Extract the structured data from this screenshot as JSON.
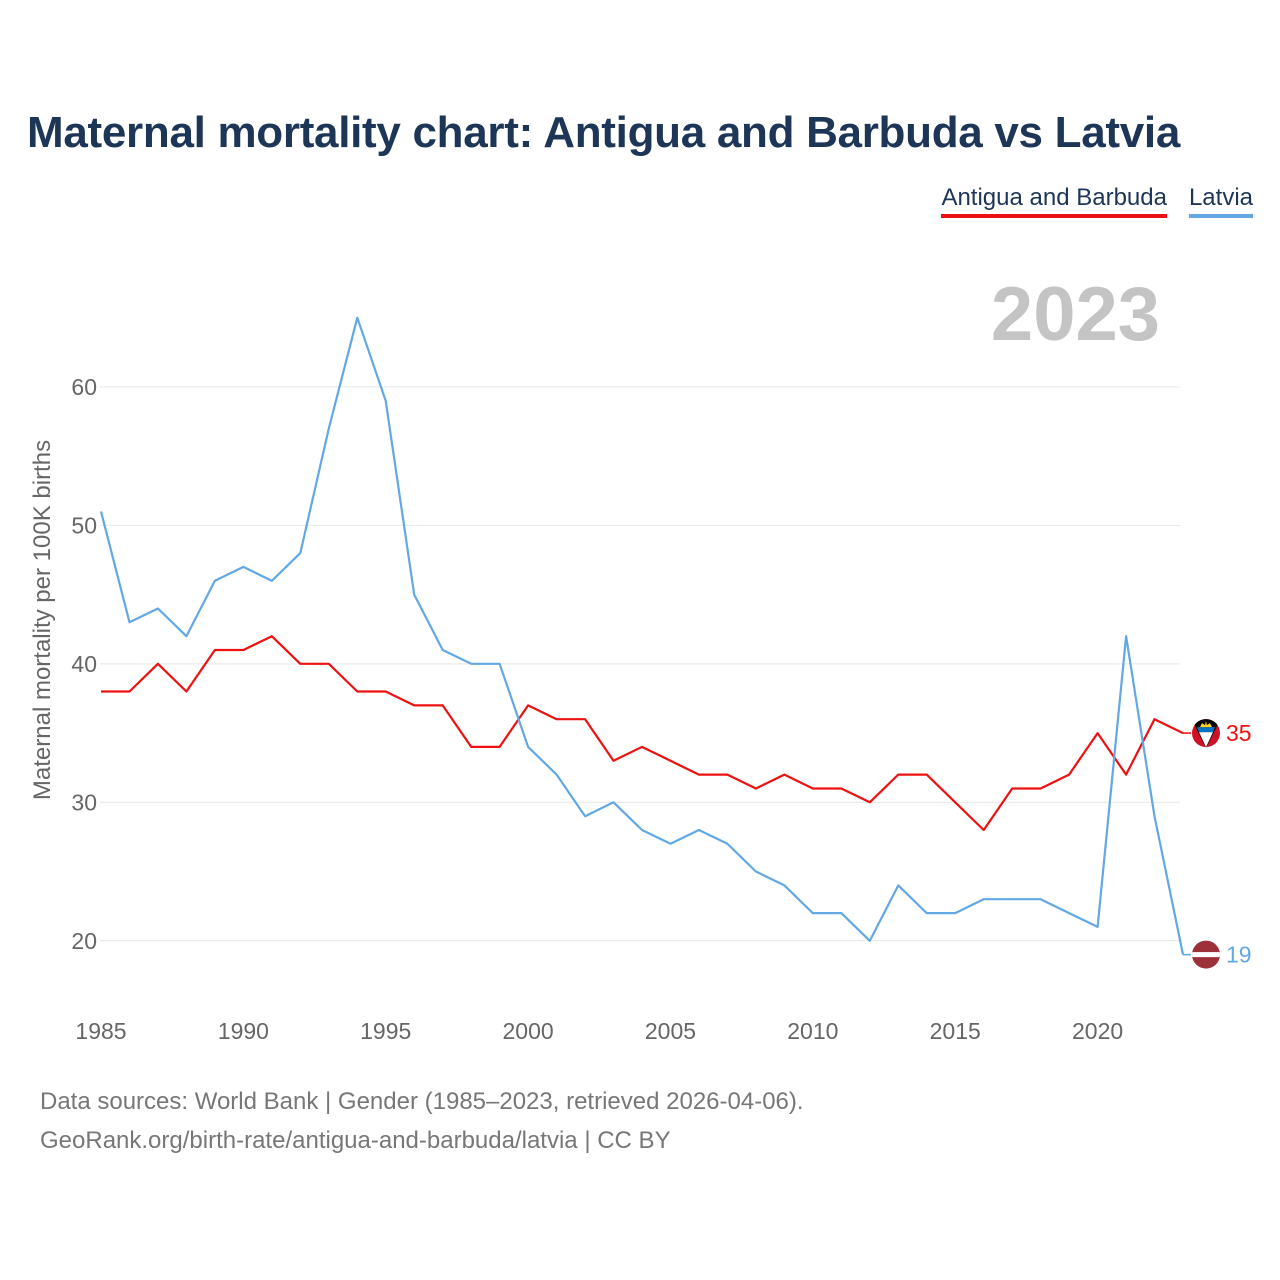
{
  "title": "Maternal mortality chart: Antigua and Barbuda vs Latvia",
  "legend": [
    {
      "name": "Antigua and Barbuda",
      "color": "#ee1111"
    },
    {
      "name": "Latvia",
      "color": "#62a8e5"
    }
  ],
  "year_label": "2023",
  "chart_data": {
    "type": "line",
    "title": "Maternal mortality chart: Antigua and Barbuda vs Latvia",
    "xlabel": "",
    "ylabel": "Maternal mortality per 100K births",
    "xlim": [
      1985,
      2023
    ],
    "ylim": [
      15,
      67
    ],
    "x_ticks": [
      1985,
      1990,
      1995,
      2000,
      2005,
      2010,
      2015,
      2020
    ],
    "y_ticks": [
      20,
      30,
      40,
      50,
      60
    ],
    "grid": true,
    "x": [
      1985,
      1986,
      1987,
      1988,
      1989,
      1990,
      1991,
      1992,
      1993,
      1994,
      1995,
      1996,
      1997,
      1998,
      1999,
      2000,
      2001,
      2002,
      2003,
      2004,
      2005,
      2006,
      2007,
      2008,
      2009,
      2010,
      2011,
      2012,
      2013,
      2014,
      2015,
      2016,
      2017,
      2018,
      2019,
      2020,
      2021,
      2022,
      2023
    ],
    "series": [
      {
        "name": "Antigua and Barbuda",
        "color": "#ee1111",
        "end_label": "35",
        "values": [
          38,
          38,
          40,
          38,
          41,
          41,
          42,
          40,
          40,
          38,
          38,
          37,
          37,
          34,
          34,
          37,
          36,
          36,
          33,
          34,
          33,
          32,
          32,
          31,
          32,
          31,
          31,
          30,
          32,
          32,
          30,
          28,
          31,
          31,
          32,
          35,
          32,
          36,
          35
        ]
      },
      {
        "name": "Latvia",
        "color": "#62a8e5",
        "end_label": "19",
        "values": [
          51,
          43,
          44,
          42,
          46,
          47,
          46,
          48,
          57,
          65,
          59,
          45,
          41,
          40,
          40,
          34,
          32,
          29,
          30,
          28,
          27,
          28,
          27,
          25,
          24,
          22,
          22,
          20,
          24,
          22,
          22,
          23,
          23,
          23,
          22,
          21,
          42,
          29,
          19
        ]
      }
    ]
  },
  "footer": {
    "line1": "Data sources: World Bank | Gender (1985–2023, retrieved 2026-04-06).",
    "line2": "GeoRank.org/birth-rate/antigua-and-barbuda/latvia | CC BY"
  }
}
